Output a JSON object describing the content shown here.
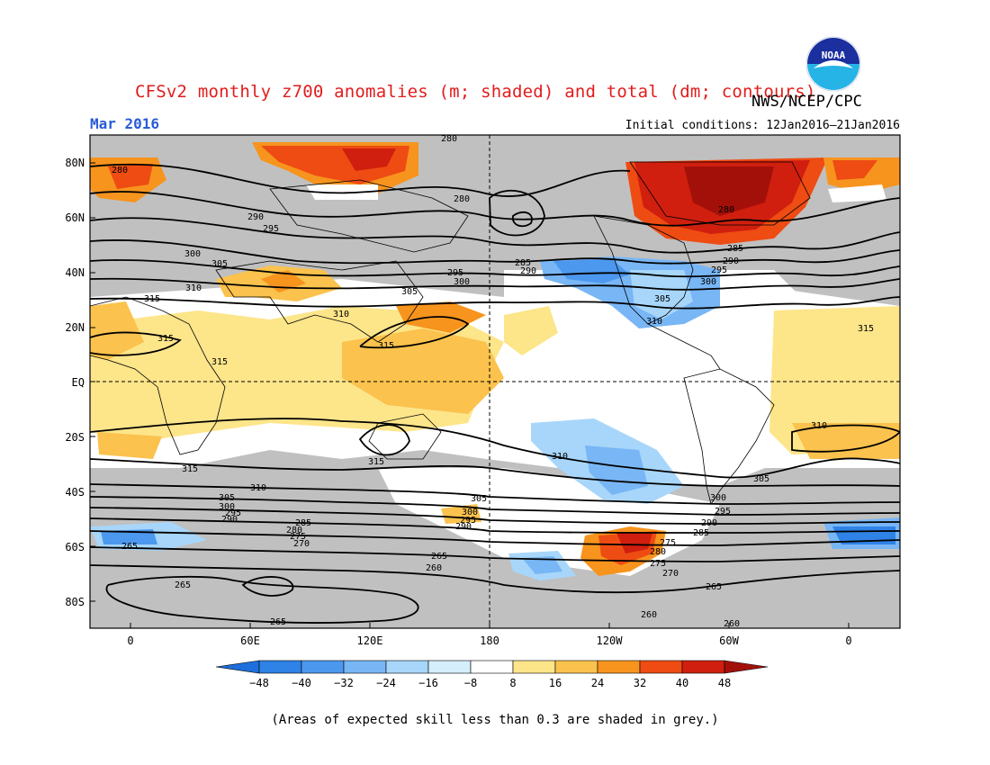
{
  "title": "CFSv2 monthly z700 anomalies (m; shaded) and total (dm; contours)",
  "agency": "NWS/NCEP/CPC",
  "valid_month": "Mar 2016",
  "initial_conditions": "Initial conditions: 12Jan2016–21Jan2016",
  "footnote": "(Areas of expected skill less than 0.3 are shaded in grey.)",
  "logo_text": "NOAA",
  "map": {
    "lat_ticks": [
      "80N",
      "60N",
      "40N",
      "20N",
      "EQ",
      "20S",
      "40S",
      "60S",
      "80S"
    ],
    "lon_ticks": [
      "0",
      "60E",
      "120E",
      "180",
      "120W",
      "60W",
      "0"
    ]
  },
  "colorbar": {
    "labels": [
      "−48",
      "−40",
      "−32",
      "−24",
      "−16",
      "−8",
      "8",
      "16",
      "24",
      "32",
      "40",
      "48"
    ],
    "colors": [
      "#1e6fdc",
      "#2f82e6",
      "#4d98ef",
      "#78b6f5",
      "#a7d6fa",
      "#d4eefc",
      "#ffffff",
      "#fde58a",
      "#fbc24d",
      "#f7941e",
      "#ee4c13",
      "#d01f0e",
      "#a3100a"
    ]
  },
  "contour_labels": [
    "280",
    "285",
    "290",
    "295",
    "300",
    "305",
    "310",
    "315",
    "280",
    "280",
    "285",
    "290",
    "295",
    "300",
    "305",
    "310",
    "315",
    "315",
    "310",
    "305",
    "300",
    "295",
    "290",
    "285",
    "280",
    "275",
    "270",
    "265",
    "260",
    "265",
    "260",
    "265",
    "260",
    "315",
    "310",
    "305",
    "300",
    "295",
    "290",
    "285",
    "280",
    "275",
    "270",
    "265",
    "265",
    "315",
    "310",
    "305",
    "300",
    "295",
    "290",
    "285"
  ]
}
